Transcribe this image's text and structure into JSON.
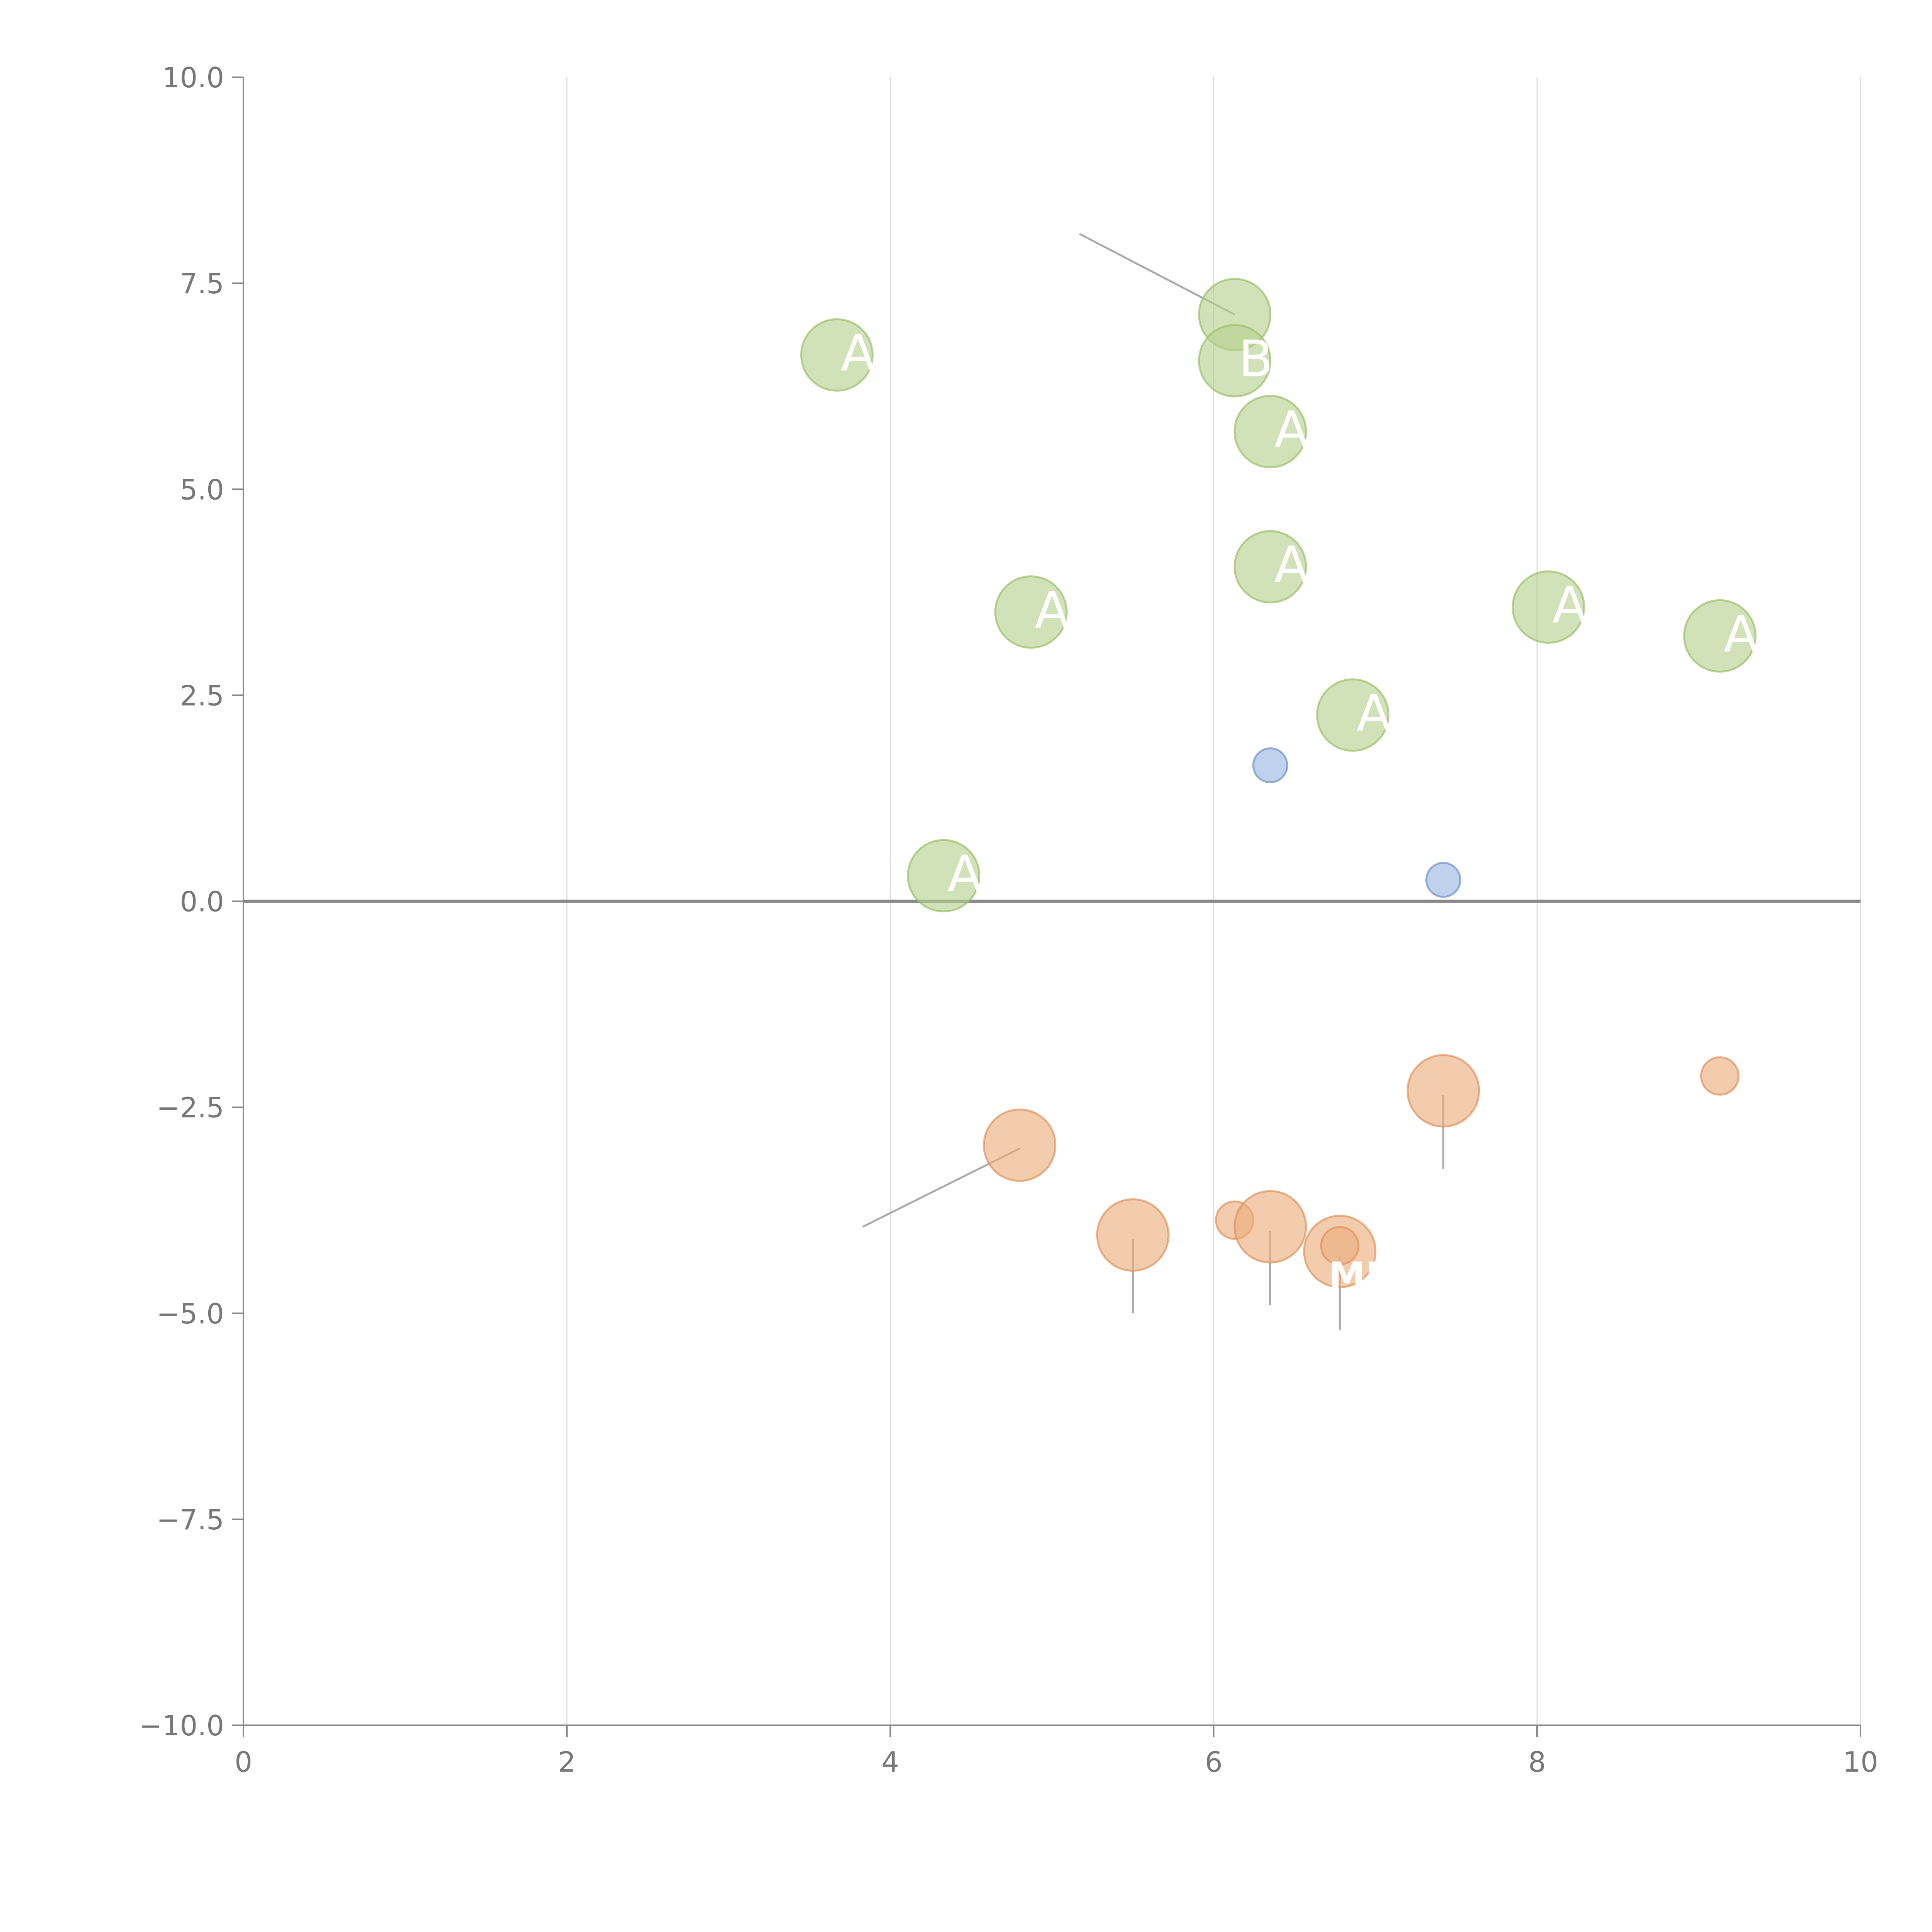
{
  "chart_data": {
    "type": "scatter",
    "title": "",
    "xlabel": "",
    "ylabel": "",
    "xlim": [
      0,
      10
    ],
    "ylim": [
      -10,
      10
    ],
    "x_ticks": [
      0,
      2,
      4,
      6,
      8,
      10
    ],
    "x_tick_labels": [
      "0",
      "2",
      "4",
      "6",
      "8",
      "10"
    ],
    "y_ticks": [
      10,
      7.5,
      5,
      2.5,
      0,
      -2.5,
      -5,
      -7.5,
      -10
    ],
    "y_tick_labels": [
      "10.0",
      "7.5",
      "5.0",
      "2.5",
      "0.0",
      "−2.5",
      "−5.0",
      "−7.5",
      "−10.0"
    ],
    "grid": "vertical",
    "zero_line": true,
    "series": [
      {
        "name": "green",
        "color": "#b5d08e",
        "stroke": "#9cbf6a",
        "points": [
          {
            "x": 3.67,
            "y": 6.63,
            "size": 2.1,
            "label": "A"
          },
          {
            "x": 6.13,
            "y": 7.12,
            "size": 2.1,
            "label": ""
          },
          {
            "x": 6.13,
            "y": 6.56,
            "size": 2.1,
            "label": "B"
          },
          {
            "x": 6.35,
            "y": 5.7,
            "size": 2.1,
            "label": "A"
          },
          {
            "x": 4.87,
            "y": 3.51,
            "size": 2.1,
            "label": "A"
          },
          {
            "x": 6.35,
            "y": 4.06,
            "size": 2.1,
            "label": "A"
          },
          {
            "x": 8.07,
            "y": 3.57,
            "size": 2.1,
            "label": "A"
          },
          {
            "x": 9.13,
            "y": 3.22,
            "size": 2.1,
            "label": "A"
          },
          {
            "x": 6.86,
            "y": 2.26,
            "size": 2.1,
            "label": "A"
          },
          {
            "x": 4.33,
            "y": 0.31,
            "size": 2.1,
            "label": "A"
          }
        ]
      },
      {
        "name": "blue",
        "color": "#97b5e0",
        "stroke": "#6f93c9",
        "points": [
          {
            "x": 6.35,
            "y": 1.65,
            "size": 1.0,
            "label": ""
          },
          {
            "x": 7.42,
            "y": 0.26,
            "size": 1.0,
            "label": ""
          }
        ]
      },
      {
        "name": "orange",
        "color": "#ecac7c",
        "stroke": "#e0925a",
        "points": [
          {
            "x": 7.42,
            "y": -2.3,
            "size": 2.1,
            "label": ""
          },
          {
            "x": 9.13,
            "y": -2.12,
            "size": 1.1,
            "label": ""
          },
          {
            "x": 4.8,
            "y": -2.96,
            "size": 2.1,
            "label": ""
          },
          {
            "x": 5.5,
            "y": -4.05,
            "size": 2.1,
            "label": ""
          },
          {
            "x": 6.13,
            "y": -3.87,
            "size": 1.1,
            "label": ""
          },
          {
            "x": 6.35,
            "y": -3.95,
            "size": 2.1,
            "label": ""
          },
          {
            "x": 6.78,
            "y": -4.25,
            "size": 2.1,
            "label": ""
          },
          {
            "x": 6.78,
            "y": -4.18,
            "size": 1.1,
            "label": ""
          }
        ]
      }
    ],
    "leader_lines": [
      {
        "from": [
          6.13,
          7.12
        ],
        "to": [
          5.17,
          8.1
        ]
      },
      {
        "from": [
          7.42,
          -2.35
        ],
        "to": [
          7.42,
          -3.25
        ]
      },
      {
        "from": [
          4.8,
          -3.0
        ],
        "to": [
          3.83,
          -3.95
        ]
      },
      {
        "from": [
          5.5,
          -4.1
        ],
        "to": [
          5.5,
          -5.0
        ]
      },
      {
        "from": [
          6.35,
          -4.0
        ],
        "to": [
          6.35,
          -4.9
        ]
      },
      {
        "from": [
          6.78,
          -4.3
        ],
        "to": [
          6.78,
          -5.2
        ]
      }
    ],
    "callouts": [
      {
        "x": 6.4,
        "y": -4.7,
        "text": "— ME"
      }
    ]
  }
}
